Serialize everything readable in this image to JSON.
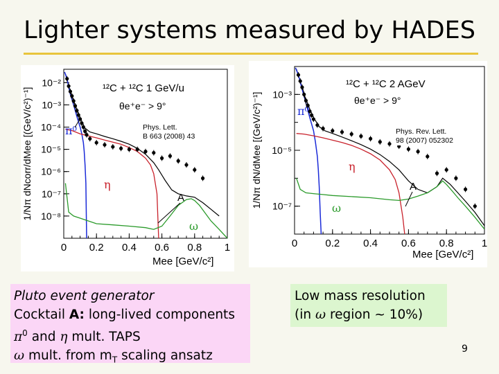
{
  "slide": {
    "title": "Lighter systems measured by HADES",
    "page_number": "9",
    "left_box": {
      "line1": "Pluto event generator",
      "line2_pre": "Cocktail ",
      "line2_bold": "A:",
      "line2_post": " long-lived components",
      "line3_sym1": "π",
      "line3_sup": "0",
      "line3_and": " and ",
      "line3_sym2": "η",
      "line3_post": "  mult. TAPS",
      "line4_sym": "ω",
      "line4_mid": "  mult. from m",
      "line4_sub": "T",
      "line4_post": " scaling ansatz"
    },
    "right_box": {
      "line1": "Low mass resolution",
      "line2_pre": "(in ",
      "line2_sym": "ω",
      "line2_post": " region ~ 10%)"
    }
  },
  "colors": {
    "accent_rule": "#e8c43b",
    "pi0": "#1a2ad8",
    "eta": "#c8202a",
    "omega": "#2a9a2a",
    "cocktail": "#000000",
    "data": "#000000",
    "left_box": "#fbd6f6",
    "right_box": "#dcf6cf"
  },
  "chart_data": [
    {
      "type": "scatter",
      "system": "¹²C + ¹²C  1 GeV/u",
      "cut": "θe⁺e⁻ > 9°",
      "reference_line1": "Phys. Lett.",
      "reference_line2": "B 663 (2008) 43",
      "xlabel": "Mee [GeV/c²]",
      "ylabel": "1/Nπ dNcorr/dMee [(GeV/c²)⁻¹]",
      "log_y": true,
      "xlim": [
        0,
        1.0
      ],
      "ylim": [
        1e-09,
        0.04
      ],
      "x_ticks": [
        "0",
        "0.2",
        "0.4",
        "0.6",
        "0.8",
        "1"
      ],
      "y_ticks": [
        "10⁻²",
        "10⁻³",
        "10⁻⁴",
        "10⁻⁵",
        "10⁻⁶",
        "10⁻⁷",
        "10⁻⁸"
      ],
      "labels": {
        "pi0": "π⁰",
        "eta": "η",
        "omega": "ω",
        "A": "A"
      },
      "data": {
        "x": [
          0.02,
          0.03,
          0.04,
          0.05,
          0.06,
          0.07,
          0.08,
          0.09,
          0.1,
          0.11,
          0.12,
          0.13,
          0.14,
          0.16,
          0.2,
          0.25,
          0.3,
          0.35,
          0.4,
          0.45,
          0.5,
          0.55,
          0.6,
          0.65,
          0.7,
          0.75,
          0.8,
          0.85
        ],
        "y": [
          0.015,
          0.007,
          0.004,
          0.0025,
          0.0015,
          0.0009,
          0.00055,
          0.00035,
          0.00023,
          0.00015,
          0.0001,
          6.5e-05,
          4.5e-05,
          3e-05,
          2e-05,
          1.6e-05,
          1.3e-05,
          1.1e-05,
          1e-05,
          1e-05,
          8e-06,
          7e-06,
          4e-06,
          5e-06,
          3e-06,
          2e-06,
          1.2e-06,
          5e-07
        ]
      },
      "curves": {
        "cocktail": {
          "x": [
            0.01,
            0.03,
            0.05,
            0.08,
            0.1,
            0.13,
            0.16,
            0.2,
            0.25,
            0.3,
            0.35,
            0.4,
            0.45,
            0.5,
            0.55,
            0.58,
            0.62,
            0.66,
            0.7,
            0.75,
            0.8,
            0.85,
            0.9,
            0.95
          ],
          "y": [
            0.025,
            0.007,
            0.0025,
            0.0006,
            0.00026,
            9e-05,
            6e-05,
            5e-05,
            3.8e-05,
            3e-05,
            2.3e-05,
            1.7e-05,
            1.1e-05,
            6e-06,
            2.5e-06,
            1.2e-06,
            4e-07,
            1.5e-07,
            1e-07,
            8e-08,
            7e-08,
            4e-08,
            2e-08,
            1e-08
          ]
        },
        "pi0": {
          "x": [
            0.005,
            0.02,
            0.04,
            0.06,
            0.08,
            0.1,
            0.11,
            0.12,
            0.125,
            0.13,
            0.135,
            0.14
          ],
          "y": [
            0.03,
            0.015,
            0.003,
            0.001,
            0.0003,
            0.0001,
            5e-05,
            2e-05,
            8e-06,
            2e-06,
            3e-07,
            1e-09
          ]
        },
        "eta": {
          "x": [
            0.01,
            0.05,
            0.1,
            0.15,
            0.2,
            0.25,
            0.3,
            0.35,
            0.4,
            0.45,
            0.5,
            0.53,
            0.55,
            0.57,
            0.58
          ],
          "y": [
            8e-05,
            7e-05,
            5e-05,
            4e-05,
            3.3e-05,
            2.6e-05,
            2.1e-05,
            1.7e-05,
            1.2e-05,
            8e-06,
            4e-06,
            2e-06,
            8e-07,
            1e-07,
            1e-09
          ]
        },
        "omega": {
          "x": [
            0.01,
            0.03,
            0.06,
            0.1,
            0.15,
            0.2,
            0.3,
            0.4,
            0.5,
            0.55,
            0.6,
            0.65,
            0.7,
            0.75,
            0.78,
            0.8,
            0.83,
            0.86,
            0.9,
            0.95,
            1.0
          ],
          "y": [
            3e-07,
            1.5e-08,
            1e-08,
            8e-09,
            6e-09,
            4.5e-09,
            4e-09,
            3.5e-09,
            3e-09,
            2.5e-09,
            3.5e-09,
            1e-08,
            3e-08,
            5.5e-08,
            6e-08,
            5e-08,
            3e-08,
            1.5e-08,
            6e-09,
            2.5e-09,
            1e-09
          ]
        }
      }
    },
    {
      "type": "scatter",
      "system": "¹²C + ¹²C  2 AGeV",
      "cut": "θe⁺e⁻ > 9°",
      "reference_line1": "Phys. Rev. Lett.",
      "reference_line2": "98 (2007) 052302",
      "xlabel": "Mee [GeV/c²]",
      "ylabel": "1/Nπ dN/dMee [(GeV/c²)⁻¹]",
      "log_y": true,
      "xlim": [
        0,
        1.0
      ],
      "ylim": [
        1e-08,
        0.01
      ],
      "x_ticks": [
        "0",
        "0.2",
        "0.4",
        "0.6",
        "0.8",
        "1"
      ],
      "y_ticks": [
        "10⁻³",
        "10⁻⁵",
        "10⁻⁷"
      ],
      "labels": {
        "pi0": "π⁰",
        "eta": "η",
        "omega": "ω",
        "A": "A"
      },
      "data": {
        "x": [
          0.02,
          0.03,
          0.04,
          0.05,
          0.06,
          0.07,
          0.08,
          0.09,
          0.1,
          0.12,
          0.15,
          0.2,
          0.25,
          0.3,
          0.35,
          0.4,
          0.45,
          0.5,
          0.55,
          0.6,
          0.65,
          0.7,
          0.75,
          0.8,
          0.85,
          0.9,
          0.95
        ],
        "y": [
          0.005,
          0.003,
          0.0018,
          0.001,
          0.0006,
          0.0004,
          0.00025,
          0.00018,
          0.00013,
          8e-05,
          6e-05,
          5e-05,
          4.5e-05,
          3.8e-05,
          3.2e-05,
          2.6e-05,
          2e-05,
          1.7e-05,
          1.4e-05,
          1.1e-05,
          9e-06,
          6e-06,
          1.5e-06,
          2e-06,
          1e-06,
          4e-07,
          1e-07
        ]
      },
      "curves": {
        "cocktail": {
          "x": [
            0.01,
            0.03,
            0.05,
            0.08,
            0.1,
            0.13,
            0.16,
            0.2,
            0.25,
            0.3,
            0.35,
            0.4,
            0.45,
            0.5,
            0.55,
            0.6,
            0.65,
            0.7,
            0.75,
            0.78,
            0.82,
            0.86,
            0.9,
            0.95,
            1.0
          ],
          "y": [
            0.008,
            0.003,
            0.001,
            0.0003,
            0.00015,
            7e-05,
            5e-05,
            4e-05,
            3e-05,
            2.2e-05,
            1.6e-05,
            1.1e-05,
            7e-06,
            4e-06,
            2e-06,
            8e-07,
            4e-07,
            3e-07,
            5e-07,
            1e-06,
            6e-07,
            3e-07,
            1.5e-07,
            6e-08,
            2e-08
          ]
        },
        "pi0": {
          "x": [
            0.005,
            0.02,
            0.04,
            0.06,
            0.08,
            0.1,
            0.11,
            0.12,
            0.125,
            0.13,
            0.135,
            0.14
          ],
          "y": [
            0.009,
            0.005,
            0.0015,
            0.0005,
            0.00015,
            5e-05,
            2e-05,
            6e-06,
            2e-06,
            5e-07,
            6e-08,
            1e-08
          ]
        },
        "eta": {
          "x": [
            0.01,
            0.05,
            0.1,
            0.15,
            0.2,
            0.25,
            0.3,
            0.35,
            0.4,
            0.45,
            0.5,
            0.53,
            0.55,
            0.57,
            0.58
          ],
          "y": [
            4e-05,
            3.8e-05,
            3.3e-05,
            2.8e-05,
            2.3e-05,
            1.9e-05,
            1.5e-05,
            1.1e-05,
            7.5e-06,
            4.5e-06,
            2e-06,
            9e-07,
            3e-07,
            4e-08,
            1e-08
          ]
        },
        "omega": {
          "x": [
            0.01,
            0.03,
            0.06,
            0.1,
            0.15,
            0.2,
            0.3,
            0.4,
            0.5,
            0.55,
            0.6,
            0.65,
            0.7,
            0.75,
            0.78,
            0.8,
            0.83,
            0.86,
            0.9,
            0.95,
            1.0
          ],
          "y": [
            1e-06,
            4e-07,
            3e-07,
            2.8e-07,
            2.6e-07,
            2.4e-07,
            2.2e-07,
            2e-07,
            1.7e-07,
            1.6e-07,
            1.8e-07,
            2.3e-07,
            3e-07,
            5e-07,
            8e-07,
            6e-07,
            3.5e-07,
            2e-07,
            1e-07,
            4e-08,
            1.5e-08
          ]
        }
      }
    }
  ]
}
